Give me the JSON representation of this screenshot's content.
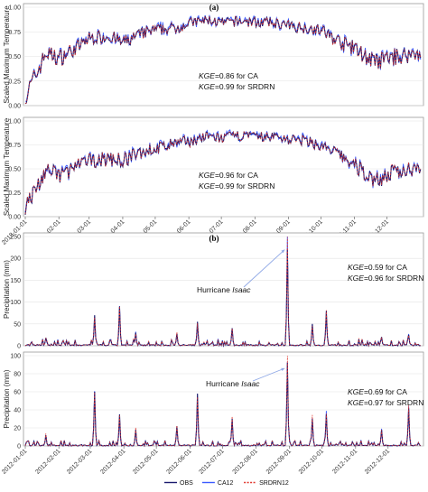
{
  "colors": {
    "obs": "#1a1a6e",
    "ca12": "#3b5bff",
    "srdrn12": "#e0352b",
    "arrow": "#8fa8e6",
    "grid": "#e3e3e3",
    "frame": "#9a9a9a"
  },
  "figure": {
    "panel_a_label": "(a)",
    "panel_b_label": "(b)",
    "hurricane_prefix": "Hurricane ",
    "hurricane_name": "Isaac"
  },
  "chart_data": [
    {
      "type": "line",
      "id": "temp_top",
      "ylabel": "Scaled Maximum Temperature",
      "ylim": [
        0,
        1.0
      ],
      "yticks": [
        "0.00",
        "0.25",
        "0.50",
        "0.75",
        "1.00"
      ],
      "xticks": [],
      "kge_lines": [
        {
          "sym": "KGE",
          "text": "=0.86 for CA"
        },
        {
          "sym": "KGE",
          "text": "=0.99 for SRDRN"
        }
      ],
      "series": [
        {
          "name": "OBS",
          "x": [
            "2018-01-01",
            "2018-01-20",
            "2018-02-01",
            "2018-02-20",
            "2018-03-01",
            "2018-03-20",
            "2018-04-01",
            "2018-04-20",
            "2018-05-01",
            "2018-05-20",
            "2018-06-01",
            "2018-06-20",
            "2018-07-01",
            "2018-07-20",
            "2018-08-01",
            "2018-08-20",
            "2018-09-01",
            "2018-09-20",
            "2018-10-01",
            "2018-10-20",
            "2018-11-01",
            "2018-11-20",
            "2018-12-01",
            "2018-12-31"
          ],
          "values": [
            0.1,
            0.55,
            0.5,
            0.62,
            0.7,
            0.72,
            0.65,
            0.75,
            0.78,
            0.8,
            0.85,
            0.88,
            0.85,
            0.87,
            0.86,
            0.85,
            0.82,
            0.8,
            0.78,
            0.65,
            0.6,
            0.45,
            0.5,
            0.55
          ]
        }
      ]
    },
    {
      "type": "line",
      "id": "temp_bottom",
      "ylabel": "Scaled Maximum Temperature",
      "ylim": [
        0,
        1.0
      ],
      "yticks": [
        "0.00",
        "0.25",
        "0.50",
        "0.75",
        "1.00"
      ],
      "xticks": [
        "2018-01-01",
        "2018-02-01",
        "2018-03-01",
        "2018-04-01",
        "2018-05-01",
        "2018-06-01",
        "2018-07-01",
        "2018-08-01",
        "2018-09-01",
        "2018-10-01",
        "2018-11-01",
        "2018-12-01"
      ],
      "kge_lines": [
        {
          "sym": "KGE",
          "text": "=0.96 for CA"
        },
        {
          "sym": "KGE",
          "text": "=0.99 for SRDRN"
        }
      ],
      "series": [
        {
          "name": "OBS",
          "x": [
            "2018-01-01",
            "2018-01-20",
            "2018-02-01",
            "2018-02-20",
            "2018-03-01",
            "2018-03-20",
            "2018-04-01",
            "2018-04-20",
            "2018-05-01",
            "2018-05-20",
            "2018-06-01",
            "2018-06-20",
            "2018-07-01",
            "2018-07-20",
            "2018-08-01",
            "2018-08-20",
            "2018-09-01",
            "2018-09-20",
            "2018-10-01",
            "2018-10-20",
            "2018-11-01",
            "2018-11-20",
            "2018-12-01",
            "2018-12-31"
          ],
          "values": [
            0.1,
            0.5,
            0.45,
            0.55,
            0.6,
            0.62,
            0.6,
            0.7,
            0.72,
            0.78,
            0.8,
            0.85,
            0.83,
            0.86,
            0.84,
            0.85,
            0.82,
            0.8,
            0.75,
            0.65,
            0.55,
            0.4,
            0.45,
            0.55
          ]
        }
      ]
    },
    {
      "type": "line",
      "id": "precip_top",
      "ylabel": "Precipitation (mm)",
      "ylim": [
        0,
        250
      ],
      "yticks": [
        "0",
        "50",
        "100",
        "150",
        "200",
        "250"
      ],
      "xticks": [],
      "kge_lines": [
        {
          "sym": "KGE",
          "text": "=0.59 for CA"
        },
        {
          "sym": "KGE",
          "text": "=0.96 for SRDRN"
        }
      ],
      "peak": {
        "x": "2012-08-30",
        "value": 220
      },
      "series": [
        {
          "name": "OBS",
          "x": [
            "2012-01-20",
            "2012-03-05",
            "2012-03-28",
            "2012-04-12",
            "2012-05-20",
            "2012-06-08",
            "2012-07-10",
            "2012-08-30",
            "2012-09-22",
            "2012-10-05",
            "2012-11-25",
            "2012-12-20"
          ],
          "values": [
            18,
            70,
            90,
            30,
            28,
            55,
            40,
            220,
            50,
            80,
            20,
            25
          ]
        }
      ]
    },
    {
      "type": "line",
      "id": "precip_bottom",
      "ylabel": "Precipitation (mm)",
      "ylim": [
        0,
        100
      ],
      "yticks": [
        "0",
        "20",
        "40",
        "60",
        "80",
        "100"
      ],
      "xticks": [
        "2012-01-01",
        "2012-02-01",
        "2012-03-01",
        "2012-04-01",
        "2012-05-01",
        "2012-06-01",
        "2012-07-01",
        "2012-08-01",
        "2012-09-01",
        "2012-10-01",
        "2012-11-01",
        "2012-12-01"
      ],
      "kge_lines": [
        {
          "sym": "KGE",
          "text": "=0.69 for CA"
        },
        {
          "sym": "KGE",
          "text": "=0.97 for SRDRN"
        }
      ],
      "peak": {
        "x": "2012-08-30",
        "value": 92
      },
      "series": [
        {
          "name": "OBS",
          "x": [
            "2012-01-20",
            "2012-03-05",
            "2012-03-28",
            "2012-04-12",
            "2012-05-20",
            "2012-06-08",
            "2012-07-10",
            "2012-08-30",
            "2012-09-22",
            "2012-10-05",
            "2012-11-25",
            "2012-12-20"
          ],
          "values": [
            12,
            60,
            35,
            18,
            22,
            58,
            30,
            92,
            30,
            35,
            18,
            42
          ]
        }
      ]
    }
  ],
  "legend": [
    {
      "label": "OBS",
      "key": "obs"
    },
    {
      "label": "CA12",
      "key": "ca12"
    },
    {
      "label": "SRDRN12",
      "key": "srdrn12"
    }
  ]
}
